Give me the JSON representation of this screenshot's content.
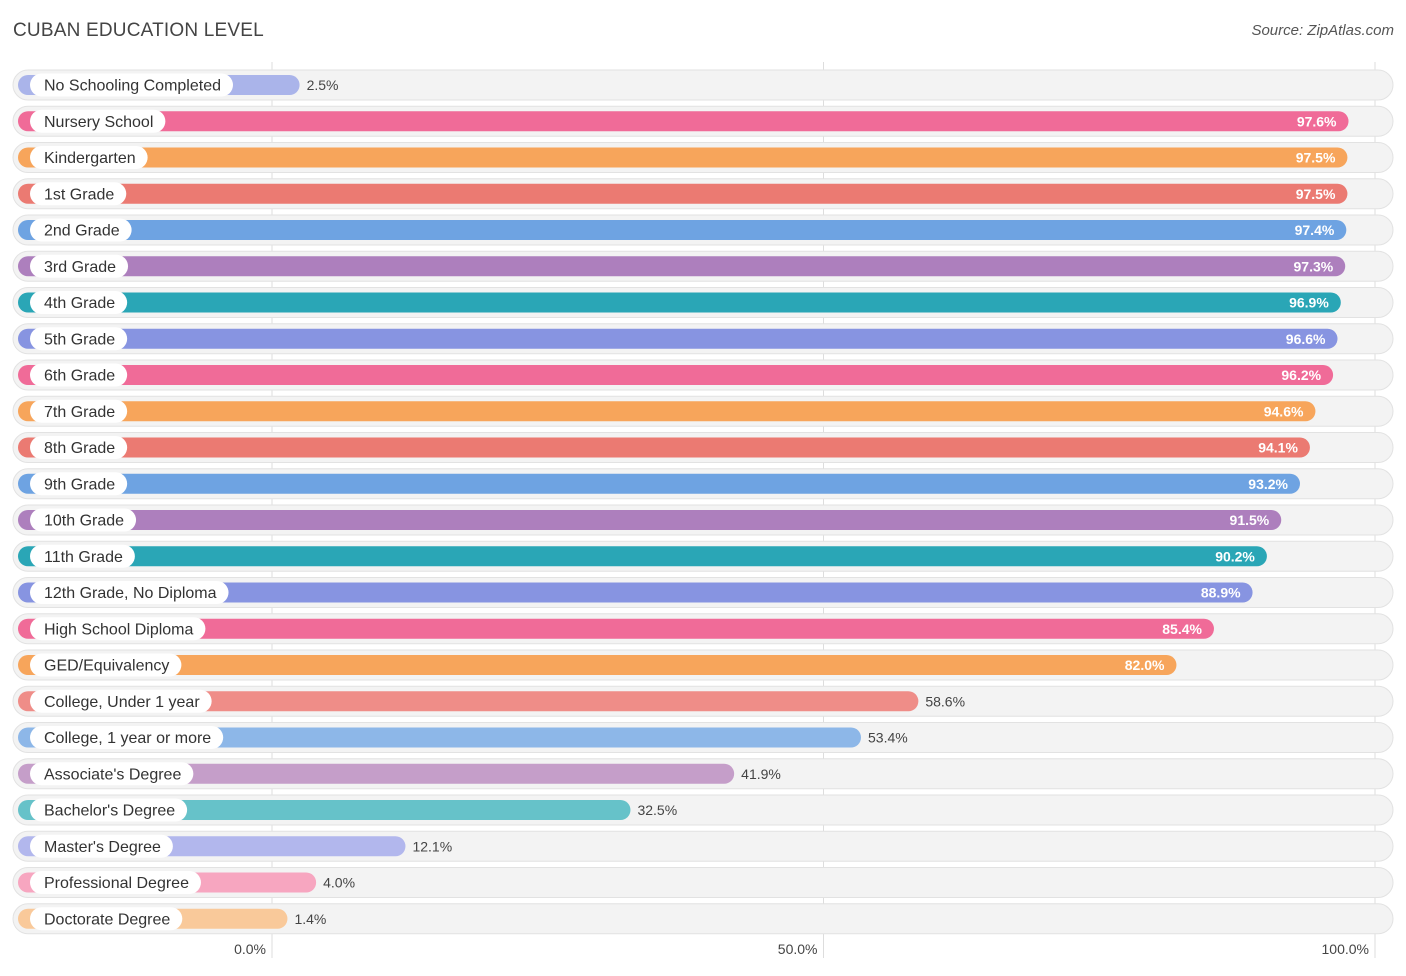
{
  "header": {
    "title": "CUBAN EDUCATION LEVEL",
    "source": "Source: ZipAtlas.com"
  },
  "chart_data": {
    "type": "bar",
    "orientation": "horizontal",
    "title": "CUBAN EDUCATION LEVEL",
    "xlim": [
      0,
      100
    ],
    "x_ticks": [
      "0.0%",
      "50.0%",
      "100.0%"
    ],
    "grid": true,
    "value_suffix": "%",
    "categories": [
      "No Schooling Completed",
      "Nursery School",
      "Kindergarten",
      "1st Grade",
      "2nd Grade",
      "3rd Grade",
      "4th Grade",
      "5th Grade",
      "6th Grade",
      "7th Grade",
      "8th Grade",
      "9th Grade",
      "10th Grade",
      "11th Grade",
      "12th Grade, No Diploma",
      "High School Diploma",
      "GED/Equivalency",
      "College, Under 1 year",
      "College, 1 year or more",
      "Associate's Degree",
      "Bachelor's Degree",
      "Master's Degree",
      "Professional Degree",
      "Doctorate Degree"
    ],
    "values": [
      2.5,
      97.6,
      97.5,
      97.5,
      97.4,
      97.3,
      96.9,
      96.6,
      96.2,
      94.6,
      94.1,
      93.2,
      91.5,
      90.2,
      88.9,
      85.4,
      82.0,
      58.6,
      53.4,
      41.9,
      32.5,
      12.1,
      4.0,
      1.4
    ],
    "value_labels": [
      "2.5%",
      "97.6%",
      "97.5%",
      "97.5%",
      "97.4%",
      "97.3%",
      "96.9%",
      "96.6%",
      "96.2%",
      "94.6%",
      "94.1%",
      "93.2%",
      "91.5%",
      "90.2%",
      "88.9%",
      "85.4%",
      "82.0%",
      "58.6%",
      "53.4%",
      "41.9%",
      "32.5%",
      "12.1%",
      "4.0%",
      "1.4%"
    ],
    "colors": [
      "#aab4ea",
      "#f06b98",
      "#f7a55b",
      "#eb7a72",
      "#6ea3e2",
      "#ad7fbd",
      "#2aa6b6",
      "#8794e1",
      "#f06b98",
      "#f7a55b",
      "#eb7a72",
      "#6ea3e2",
      "#ad7fbd",
      "#2aa6b6",
      "#8794e1",
      "#f06b98",
      "#f7a55b",
      "#ef8d88",
      "#8db7e8",
      "#c59ec9",
      "#66c2c9",
      "#b2b7ed",
      "#f7a6c0",
      "#f9c99a"
    ]
  }
}
